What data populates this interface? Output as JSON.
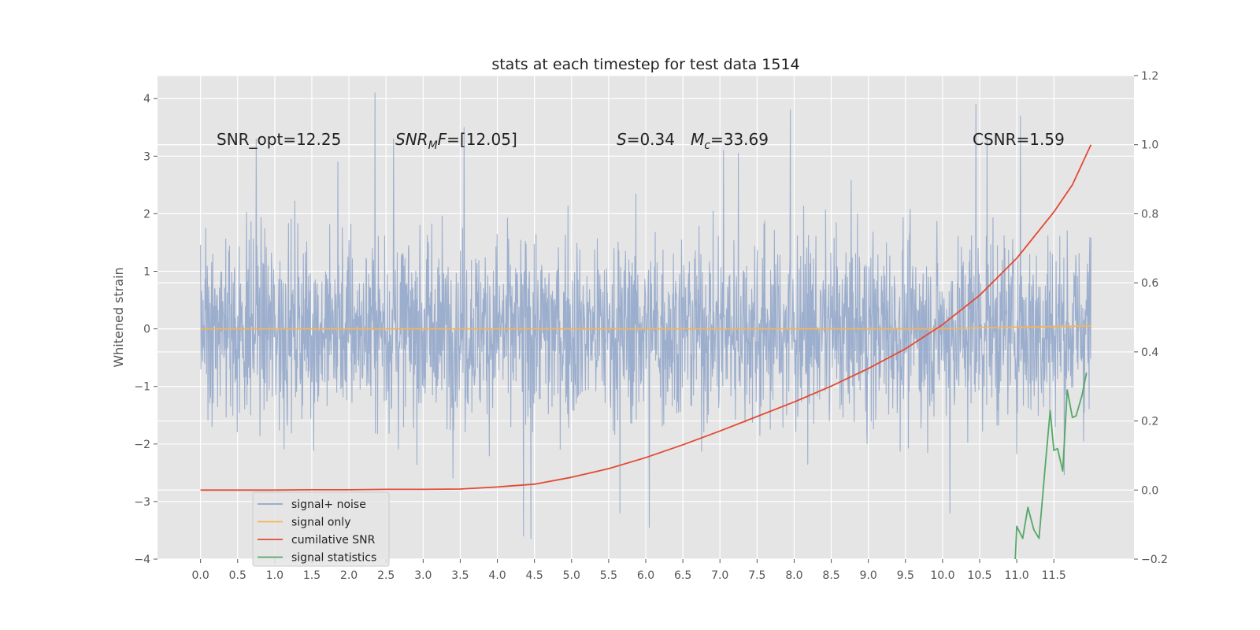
{
  "chart_data": {
    "type": "line",
    "title": "stats at each timestep for test data 1514",
    "ylabel": "Whitened strain",
    "xlabel": "",
    "xlim": [
      -0.58,
      12.58
    ],
    "ylim": [
      -4,
      4.4
    ],
    "y2lim": [
      -0.2,
      1.2
    ],
    "x_ticks": [
      "0.0",
      "0.5",
      "1.0",
      "1.5",
      "2.0",
      "2.5",
      "3.0",
      "3.5",
      "4.0",
      "4.5",
      "5.0",
      "5.5",
      "6.0",
      "6.5",
      "7.0",
      "7.5",
      "8.0",
      "8.5",
      "9.0",
      "9.5",
      "10.0",
      "10.5",
      "11.0",
      "11.5"
    ],
    "y_ticks": [
      "4",
      "3",
      "2",
      "1",
      "0",
      "−1",
      "−2",
      "−3",
      "−4"
    ],
    "y2_ticks": [
      "1.2",
      "1.0",
      "0.8",
      "0.6",
      "0.4",
      "0.2",
      "0.0",
      "−0.2"
    ],
    "grid": true,
    "legend_position": "lower-left",
    "annotations": {
      "snr_opt": "SNR_opt=12.25",
      "snr_mf_math": "SNR",
      "snr_mf_sub": "M",
      "snr_mf_f": "F",
      "snr_mf_value": "=[12.05]",
      "s_sym": "S",
      "s_value": "=0.34",
      "mc_sym": "M",
      "mc_sub": "c",
      "mc_value": "=33.69",
      "csnr": "CSNR=1.59"
    },
    "series": [
      {
        "name": "signal+ noise",
        "axis": "left",
        "color": "#8fa4c9",
        "x_range": [
          0.0,
          12.0
        ],
        "envelope_typical": [
          -2.2,
          2.3
        ],
        "x_peaks": [
          0.75,
          1.85,
          2.35,
          2.6,
          3.55,
          4.35,
          4.45,
          5.65,
          6.05,
          7.05,
          7.25,
          7.95,
          10.1,
          10.45,
          10.6,
          11.05
        ],
        "y_peaks": [
          3.3,
          2.9,
          4.1,
          3.3,
          3.5,
          -3.6,
          -3.65,
          -3.2,
          -3.45,
          3.1,
          3.05,
          3.8,
          -3.2,
          3.9,
          3.3,
          3.7
        ]
      },
      {
        "name": "signal only",
        "axis": "left",
        "color": "#f5b45a",
        "x": [
          0.0,
          10.0,
          10.5,
          11.0,
          11.5,
          12.0
        ],
        "y": [
          0.0,
          0.0,
          0.02,
          0.03,
          0.04,
          0.05
        ]
      },
      {
        "name": "cumilative SNR",
        "axis": "right",
        "color": "#e24a33",
        "x": [
          0.0,
          0.5,
          1.0,
          1.5,
          2.0,
          2.5,
          3.0,
          3.5,
          4.0,
          4.5,
          5.0,
          5.5,
          6.0,
          6.5,
          7.0,
          7.5,
          8.0,
          8.5,
          9.0,
          9.5,
          10.0,
          10.5,
          11.0,
          11.5,
          11.75,
          12.0
        ],
        "y": [
          0.0,
          0.0,
          0.0,
          0.001,
          0.001,
          0.002,
          0.002,
          0.003,
          0.009,
          0.017,
          0.037,
          0.062,
          0.094,
          0.131,
          0.171,
          0.213,
          0.255,
          0.301,
          0.352,
          0.409,
          0.479,
          0.564,
          0.671,
          0.805,
          0.884,
          1.0
        ]
      },
      {
        "name": "signal statistics",
        "axis": "right",
        "color": "#55a868",
        "x": [
          10.98,
          11.0,
          11.08,
          11.15,
          11.23,
          11.3,
          11.38,
          11.45,
          11.5,
          11.55,
          11.62,
          11.68,
          11.75,
          11.8,
          11.88,
          11.94
        ],
        "y": [
          -0.2,
          -0.105,
          -0.14,
          -0.05,
          -0.115,
          -0.14,
          0.06,
          0.23,
          0.115,
          0.12,
          0.055,
          0.29,
          0.21,
          0.215,
          0.275,
          0.34
        ]
      }
    ]
  }
}
